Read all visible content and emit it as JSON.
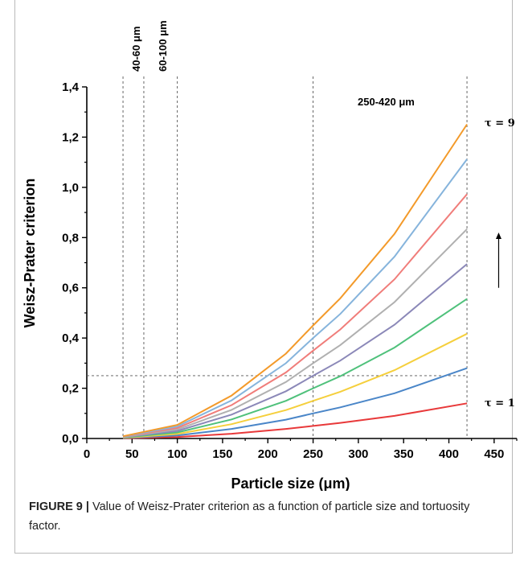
{
  "chart_data": {
    "type": "line",
    "xlabel": "Particle size (μm)",
    "ylabel": "Weisz-Prater criterion",
    "xlim": [
      0,
      475
    ],
    "ylim": [
      0,
      1.4
    ],
    "x_ticks": [
      "0",
      "50",
      "100",
      "150",
      "200",
      "250",
      "300",
      "350",
      "400",
      "450"
    ],
    "y_ticks": [
      "0,0",
      "0,2",
      "0,4",
      "0,6",
      "0,8",
      "1,0",
      "1,2",
      "1,4"
    ],
    "x": [
      40,
      100,
      160,
      220,
      250,
      280,
      340,
      420
    ],
    "series": [
      {
        "color": "#e8393a",
        "values": [
          0.001,
          0.006,
          0.019,
          0.038,
          0.05,
          0.062,
          0.09,
          0.14
        ]
      },
      {
        "color": "#4a86c8",
        "values": [
          0.002,
          0.012,
          0.038,
          0.075,
          0.1,
          0.124,
          0.18,
          0.28
        ]
      },
      {
        "color": "#f5cf3c",
        "values": [
          0.003,
          0.018,
          0.057,
          0.113,
          0.15,
          0.186,
          0.272,
          0.417
        ]
      },
      {
        "color": "#4fc17b",
        "values": [
          0.004,
          0.024,
          0.076,
          0.15,
          0.2,
          0.248,
          0.362,
          0.556
        ]
      },
      {
        "color": "#8b88b8",
        "values": [
          0.005,
          0.03,
          0.095,
          0.188,
          0.25,
          0.31,
          0.453,
          0.695
        ]
      },
      {
        "color": "#b0b0b0",
        "values": [
          0.006,
          0.036,
          0.114,
          0.225,
          0.3,
          0.372,
          0.543,
          0.834
        ]
      },
      {
        "color": "#f07d7a",
        "values": [
          0.007,
          0.042,
          0.133,
          0.263,
          0.35,
          0.434,
          0.634,
          0.973
        ]
      },
      {
        "color": "#86b4dc",
        "values": [
          0.008,
          0.048,
          0.152,
          0.3,
          0.4,
          0.496,
          0.724,
          1.112
        ]
      },
      {
        "color": "#f39a2a",
        "values": [
          0.009,
          0.054,
          0.171,
          0.338,
          0.45,
          0.558,
          0.815,
          1.251
        ]
      }
    ],
    "reference_lines": {
      "vertical": [
        40,
        63,
        100,
        250,
        420
      ],
      "horizontal": [
        0.25
      ]
    },
    "annotations": {
      "range_40_60": "40-60 μm",
      "range_60_100": "60-100 μm",
      "range_250_420": "250-420 μm",
      "tau_top": "τ = 9",
      "tau_bottom": "τ = 1"
    },
    "arrow": {
      "direction": "up",
      "x": 455,
      "y_from": 0.6,
      "y_to": 0.82
    },
    "grid": false,
    "legend": "none"
  },
  "caption": {
    "label": "FIGURE 9 |",
    "text": " Value of Weisz-Prater criterion as a function of particle size and tortuosity factor."
  }
}
